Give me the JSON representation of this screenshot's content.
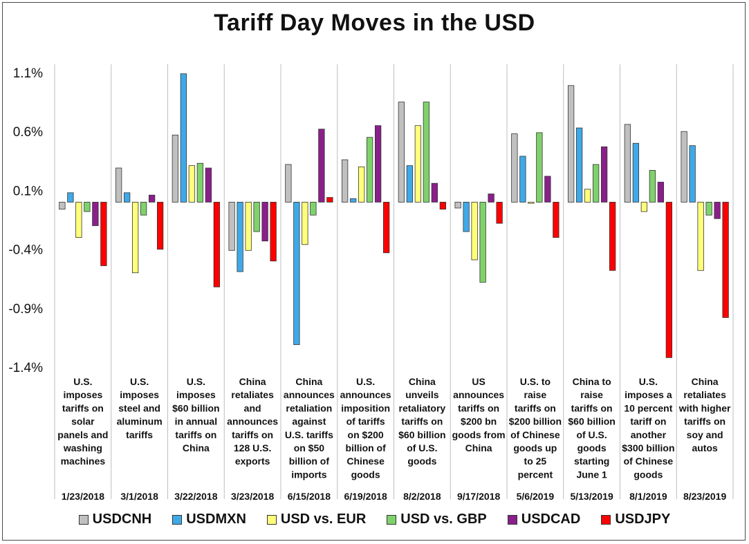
{
  "chart_data": {
    "type": "bar",
    "title": "Tariff Day Moves in the USD",
    "ylim": [
      -1.4,
      1.1
    ],
    "yticks": [
      "1.1%",
      "0.6%",
      "0.1%",
      "-0.4%",
      "-0.9%",
      "-1.4%"
    ],
    "ytick_values": [
      1.1,
      0.6,
      0.1,
      -0.4,
      -0.9,
      -1.4
    ],
    "baseline": 0.0,
    "categories": [
      {
        "event": "U.S. imposes tariffs on solar panels and washing machines",
        "lines": [
          "U.S.",
          "imposes",
          "tariffs on",
          "solar",
          "panels and",
          "washing",
          "machines"
        ],
        "date": "1/23/2018"
      },
      {
        "event": "U.S. imposes steel and aluminum tariffs",
        "lines": [
          "U.S.",
          "imposes",
          "steel and",
          "aluminum",
          "tariffs"
        ],
        "date": "3/1/2018"
      },
      {
        "event": "U.S. imposes $60 billion in annual tariffs on China",
        "lines": [
          "U.S.",
          "imposes",
          "$60 billion",
          "in annual",
          "tariffs on",
          "China"
        ],
        "date": "3/22/2018"
      },
      {
        "event": "China retaliates and announces tariffs on 128 U.S. exports",
        "lines": [
          "China",
          "retaliates",
          "and",
          "announces",
          "tariffs on",
          "128 U.S.",
          "exports"
        ],
        "date": "3/23/2018"
      },
      {
        "event": "China announces retaliation against U.S. tariffs on $50 billion of imports",
        "lines": [
          "China",
          "announces",
          "retaliation",
          "against",
          "U.S. tariffs",
          "on $50",
          "billion of",
          "imports"
        ],
        "date": "6/15/2018"
      },
      {
        "event": "U.S. announces imposition of tariffs on $200 billion of Chinese goods",
        "lines": [
          "U.S.",
          "announces",
          "imposition",
          "of tariffs",
          "on $200",
          "billion of",
          "Chinese",
          "goods"
        ],
        "date": "6/19/2018"
      },
      {
        "event": "China unveils retaliatory tariffs on $60 billion of U.S. goods",
        "lines": [
          "China",
          "unveils",
          "retaliatory",
          "tariffs on",
          "$60 billion",
          "of U.S.",
          "goods"
        ],
        "date": "8/2/2018"
      },
      {
        "event": "US announces tariffs on $200 bn goods from China",
        "lines": [
          "US",
          "announces",
          "tariffs on",
          "$200 bn",
          "goods from",
          "China"
        ],
        "date": "9/17/2018"
      },
      {
        "event": "U.S. to raise tariffs on $200 billion of Chinese goods up to 25 percent",
        "lines": [
          "U.S. to",
          "raise",
          "tariffs on",
          "$200 billion",
          "of Chinese",
          "goods up",
          "to 25",
          "percent"
        ],
        "date": "5/6/2019"
      },
      {
        "event": "China to raise tariffs on $60 billion of U.S. goods starting June 1",
        "lines": [
          "China to",
          "raise",
          "tariffs on",
          "$60 billion",
          "of U.S.",
          "goods",
          "starting",
          "June 1"
        ],
        "date": "5/13/2019"
      },
      {
        "event": "U.S. imposes a 10 percent tariff on another $300 billion of Chinese goods",
        "lines": [
          "U.S.",
          "imposes a",
          "10 percent",
          "tariff on",
          "another",
          "$300 billion",
          "of Chinese",
          "goods"
        ],
        "date": "8/1/2019"
      },
      {
        "event": "China retaliates with higher tariffs on soy and autos",
        "lines": [
          "China",
          "retaliates",
          "with higher",
          "tariffs on",
          "soy and",
          "autos"
        ],
        "date": "8/23/2019"
      }
    ],
    "series": [
      {
        "name": "USDCNH",
        "color": "#c0c0c0",
        "values": [
          -0.06,
          0.29,
          0.57,
          -0.41,
          0.32,
          0.36,
          0.85,
          -0.05,
          0.58,
          0.99,
          0.66,
          0.6
        ]
      },
      {
        "name": "USDMXN",
        "color": "#3fa9e8",
        "values": [
          0.08,
          0.08,
          1.09,
          -0.59,
          -1.21,
          0.03,
          0.31,
          -0.25,
          0.39,
          0.63,
          0.5,
          0.48
        ]
      },
      {
        "name": "USD vs. EUR",
        "color": "#ffff7a",
        "values": [
          -0.3,
          -0.6,
          0.31,
          -0.41,
          -0.36,
          0.3,
          0.65,
          -0.49,
          -0.01,
          0.11,
          -0.08,
          -0.58
        ]
      },
      {
        "name": "USD vs. GBP",
        "color": "#7fd26a",
        "values": [
          -0.08,
          -0.11,
          0.33,
          -0.25,
          -0.11,
          0.55,
          0.85,
          -0.68,
          0.59,
          0.32,
          0.27,
          -0.11
        ]
      },
      {
        "name": "USDCAD",
        "color": "#8a1f8a",
        "values": [
          -0.2,
          0.06,
          0.29,
          -0.33,
          0.62,
          0.65,
          0.16,
          0.07,
          0.22,
          0.47,
          0.17,
          -0.14
        ]
      },
      {
        "name": "USDJPY",
        "color": "#ff0000",
        "values": [
          -0.54,
          -0.4,
          -0.72,
          -0.5,
          0.04,
          -0.43,
          -0.06,
          -0.18,
          -0.3,
          -0.58,
          -1.32,
          -0.98
        ]
      }
    ],
    "legend_position": "bottom"
  }
}
